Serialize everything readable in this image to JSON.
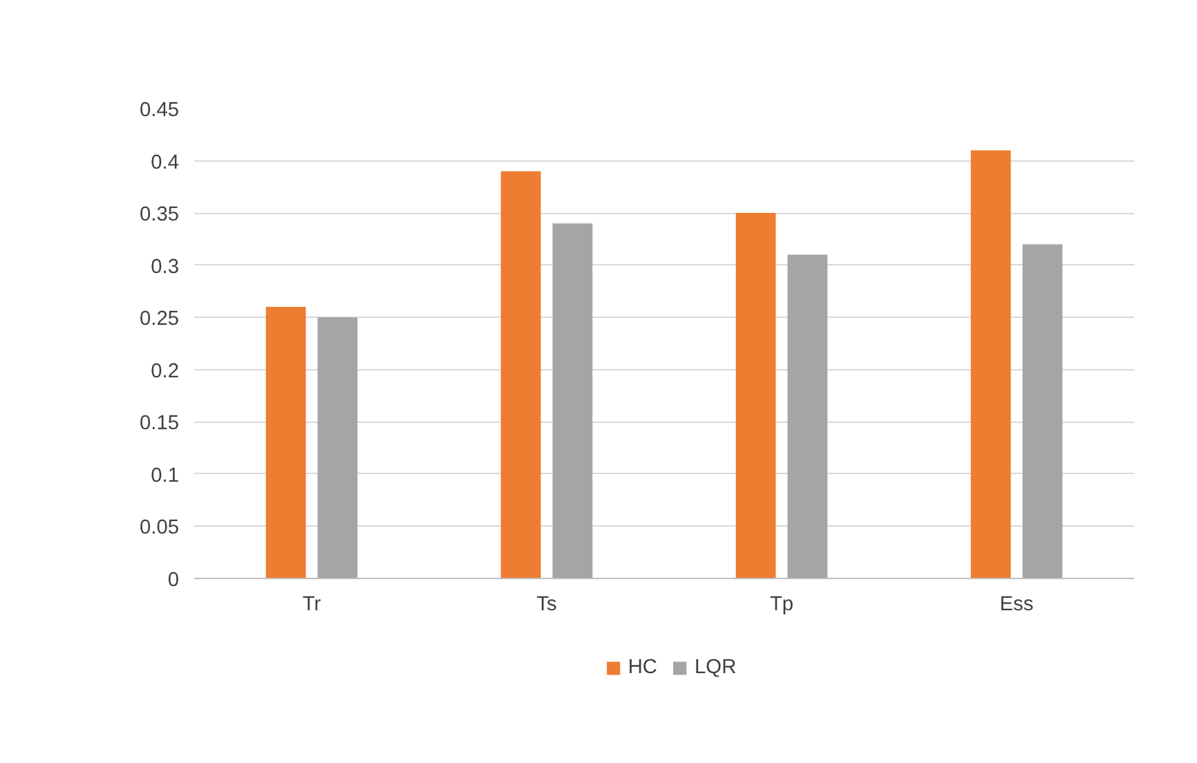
{
  "chart_data": {
    "type": "bar",
    "categories": [
      "Tr",
      "Ts",
      "Tp",
      "Ess"
    ],
    "series": [
      {
        "name": "HC",
        "color": "#ed7d31",
        "values": [
          0.26,
          0.39,
          0.35,
          0.41
        ]
      },
      {
        "name": "LQR",
        "color": "#a5a5a5",
        "values": [
          0.25,
          0.34,
          0.31,
          0.32
        ]
      }
    ],
    "ylim": [
      0,
      0.45
    ],
    "yticks": [
      0,
      0.05,
      0.1,
      0.15,
      0.2,
      0.25,
      0.3,
      0.35,
      0.4,
      0.45
    ],
    "grid": "y",
    "legend": "bottom"
  }
}
